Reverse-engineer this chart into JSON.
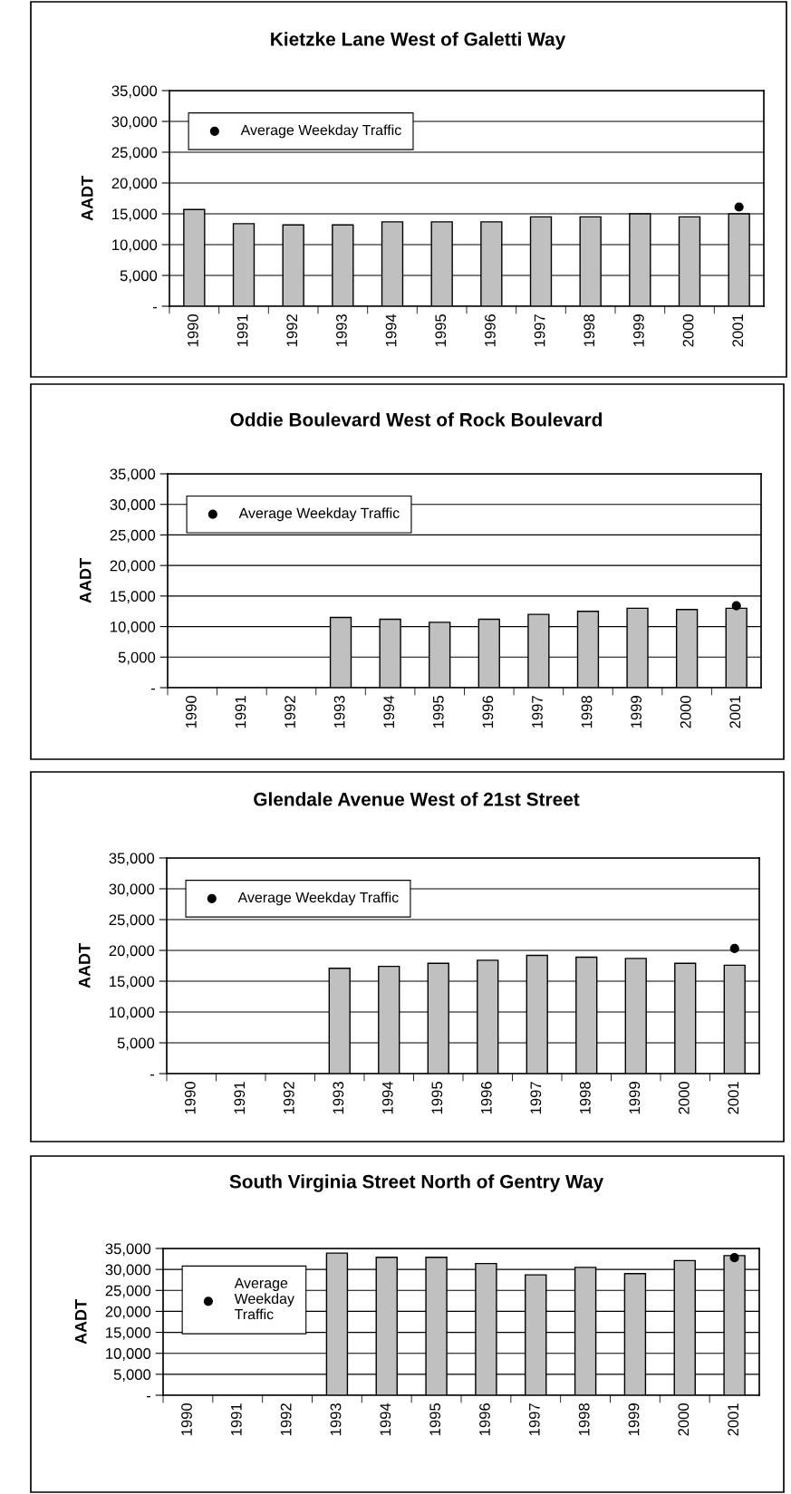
{
  "chart_data": [
    {
      "type": "bar",
      "title": "Kietzke Lane West of Galetti Way",
      "ylabel": "AADT",
      "categories": [
        "1990",
        "1991",
        "1992",
        "1993",
        "1994",
        "1995",
        "1996",
        "1997",
        "1998",
        "1999",
        "2000",
        "2001"
      ],
      "series": [
        {
          "color": "#c0c0c0",
          "values": [
            15700,
            13400,
            13200,
            13200,
            13700,
            13700,
            13700,
            14500,
            14500,
            15000,
            14500,
            15000
          ]
        },
        {
          "type": "scatter",
          "name": "Average Weekday Traffic",
          "color": "#000000",
          "values": [
            null,
            null,
            null,
            null,
            null,
            null,
            null,
            null,
            null,
            null,
            null,
            16100
          ]
        }
      ],
      "ylim": [
        0,
        35000
      ],
      "yticks": [
        {
          "value": 0,
          "label": "-"
        },
        {
          "value": 5000,
          "label": "5,000"
        },
        {
          "value": 10000,
          "label": "10,000"
        },
        {
          "value": 15000,
          "label": "15,000"
        },
        {
          "value": 20000,
          "label": "20,000"
        },
        {
          "value": 25000,
          "label": "25,000"
        },
        {
          "value": 30000,
          "label": "30,000"
        },
        {
          "value": 35000,
          "label": "35,000"
        }
      ],
      "grid": "y",
      "legend": "top left",
      "marker": "circle"
    },
    {
      "type": "bar",
      "title": "Oddie Boulevard West of Rock Boulevard",
      "ylabel": "AADT",
      "categories": [
        "1990",
        "1991",
        "1992",
        "1993",
        "1994",
        "1995",
        "1996",
        "1997",
        "1998",
        "1999",
        "2000",
        "2001"
      ],
      "series": [
        {
          "color": "#c0c0c0",
          "values": [
            null,
            null,
            null,
            11500,
            11200,
            10700,
            11200,
            12000,
            12500,
            13000,
            12800,
            13000
          ]
        },
        {
          "type": "scatter",
          "name": "Average Weekday Traffic",
          "color": "#000000",
          "values": [
            null,
            null,
            null,
            null,
            null,
            null,
            null,
            null,
            null,
            null,
            null,
            13400
          ]
        }
      ],
      "ylim": [
        0,
        35000
      ],
      "yticks": [
        {
          "value": 0,
          "label": "-"
        },
        {
          "value": 5000,
          "label": "5,000"
        },
        {
          "value": 10000,
          "label": "10,000"
        },
        {
          "value": 15000,
          "label": "15,000"
        },
        {
          "value": 20000,
          "label": "20,000"
        },
        {
          "value": 25000,
          "label": "25,000"
        },
        {
          "value": 30000,
          "label": "30,000"
        },
        {
          "value": 35000,
          "label": "35,000"
        }
      ],
      "grid": "y",
      "legend": "top left",
      "marker": "circle"
    },
    {
      "type": "bar",
      "title": "Glendale Avenue West of 21st Street",
      "ylabel": "AADT",
      "categories": [
        "1990",
        "1991",
        "1992",
        "1993",
        "1994",
        "1995",
        "1996",
        "1997",
        "1998",
        "1999",
        "2000",
        "2001"
      ],
      "series": [
        {
          "color": "#c0c0c0",
          "values": [
            null,
            null,
            null,
            17100,
            17400,
            17900,
            18400,
            19200,
            18900,
            18700,
            17900,
            17600
          ]
        },
        {
          "type": "scatter",
          "name": "Average Weekday Traffic",
          "color": "#000000",
          "values": [
            null,
            null,
            null,
            null,
            null,
            null,
            null,
            null,
            null,
            null,
            null,
            20300
          ]
        }
      ],
      "ylim": [
        0,
        35000
      ],
      "yticks": [
        {
          "value": 0,
          "label": "-"
        },
        {
          "value": 5000,
          "label": "5,000"
        },
        {
          "value": 10000,
          "label": "10,000"
        },
        {
          "value": 15000,
          "label": "15,000"
        },
        {
          "value": 20000,
          "label": "20,000"
        },
        {
          "value": 25000,
          "label": "25,000"
        },
        {
          "value": 30000,
          "label": "30,000"
        },
        {
          "value": 35000,
          "label": "35,000"
        }
      ],
      "grid": "y",
      "legend": "top left",
      "marker": "circle"
    },
    {
      "type": "bar",
      "title": "South Virginia Street North of Gentry Way",
      "ylabel": "AADT",
      "categories": [
        "1990",
        "1991",
        "1992",
        "1993",
        "1994",
        "1995",
        "1996",
        "1997",
        "1998",
        "1999",
        "2000",
        "2001"
      ],
      "series": [
        {
          "color": "#c0c0c0",
          "values": [
            null,
            null,
            null,
            33900,
            32900,
            32900,
            31400,
            28700,
            30500,
            29000,
            32100,
            33300
          ]
        },
        {
          "type": "scatter",
          "name": "Average\nWeekday\nTraffic",
          "color": "#000000",
          "values": [
            null,
            null,
            null,
            null,
            null,
            null,
            null,
            null,
            null,
            null,
            null,
            32800
          ]
        }
      ],
      "ylim": [
        0,
        35000
      ],
      "yticks": [
        {
          "value": 0,
          "label": "-"
        },
        {
          "value": 5000,
          "label": "5,000"
        },
        {
          "value": 10000,
          "label": "10,000"
        },
        {
          "value": 15000,
          "label": "15,000"
        },
        {
          "value": 20000,
          "label": "20,000"
        },
        {
          "value": 25000,
          "label": "25,000"
        },
        {
          "value": 30000,
          "label": "30,000"
        },
        {
          "value": 35000,
          "label": "35,000"
        }
      ],
      "grid": "y",
      "legend": "top left",
      "marker": "circle"
    }
  ]
}
